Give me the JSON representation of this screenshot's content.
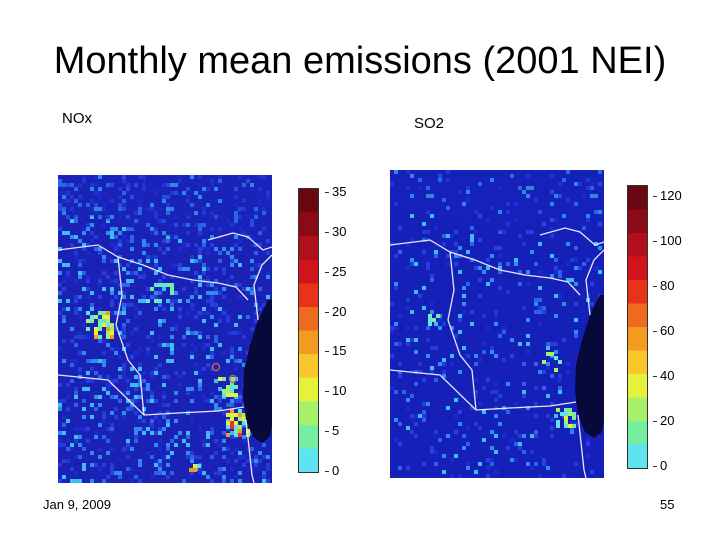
{
  "slide": {
    "title": "Monthly mean emissions (2001 NEI)",
    "date": "Jan 9, 2009",
    "page_number": "55"
  },
  "panels": [
    {
      "label": "NOx",
      "colorbar_ticks": [
        "35",
        "30",
        "25",
        "20",
        "15",
        "10",
        "5",
        "0"
      ],
      "colorbar_range": [
        0,
        35
      ]
    },
    {
      "label": "SO2",
      "colorbar_ticks": [
        "120",
        "100",
        "80",
        "60",
        "40",
        "20",
        "0"
      ],
      "colorbar_range": [
        0,
        120
      ]
    }
  ],
  "colors": {
    "palette": [
      "#5ee3f0",
      "#76eea0",
      "#a7f06a",
      "#e6f23a",
      "#f7c62a",
      "#f39a23",
      "#ee6a1d",
      "#e8321a",
      "#d1141b",
      "#b0101a",
      "#8a0b15",
      "#6b0710"
    ],
    "map_base": "#1520b8",
    "lake": "#080a3c",
    "border": "#e8e8f8"
  }
}
